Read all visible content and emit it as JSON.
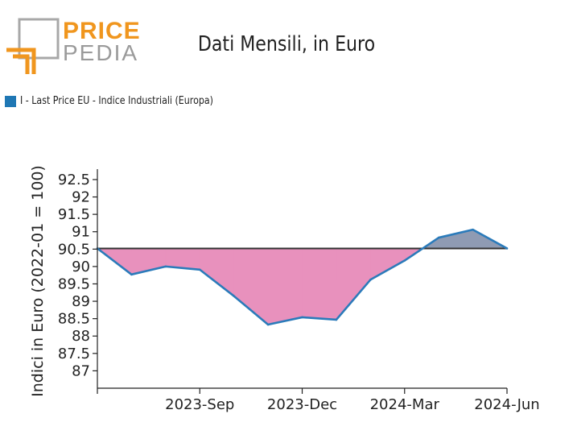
{
  "logo": {
    "line1": "PRICE",
    "line2": "PEDIA"
  },
  "colors": {
    "line": "#2b7bba",
    "below_fill": "#e891bd",
    "above_fill": "#8f9bb3",
    "baseline": "#333333",
    "legend": "#1f77b4",
    "logo_orange": "#f0961e",
    "logo_gray": "#9a9a9a"
  },
  "chart_data": {
    "type": "line",
    "title": "Dati Mensili, in Euro",
    "ylabel": "Indici in Euro (2022-01 = 100)",
    "xlabel": "",
    "legend_position": "top-left",
    "series": [
      {
        "name": "I - Last Price EU - Indice Industriali (Europa)",
        "x": [
          "2023-Jun",
          "2023-Jul",
          "2023-Aug",
          "2023-Sep",
          "2023-Oct",
          "2023-Nov",
          "2023-Dec",
          "2024-Jan",
          "2024-Feb",
          "2024-Mar",
          "2024-Apr",
          "2024-May",
          "2024-Jun"
        ],
        "values": [
          90.52,
          89.77,
          90.0,
          89.91,
          89.15,
          88.33,
          88.54,
          88.47,
          89.62,
          90.17,
          90.83,
          91.06,
          90.52
        ]
      }
    ],
    "baseline": 90.52,
    "ylim": [
      86.5,
      92.8
    ],
    "yticks": [
      "87",
      "87.5",
      "88",
      "88.5",
      "89",
      "89.5",
      "90",
      "90.5",
      "91",
      "91.5",
      "92",
      "92.5"
    ],
    "xticks": [
      "2023-Sep",
      "2023-Dec",
      "2024-Mar",
      "2024-Jun"
    ],
    "grid": false
  }
}
